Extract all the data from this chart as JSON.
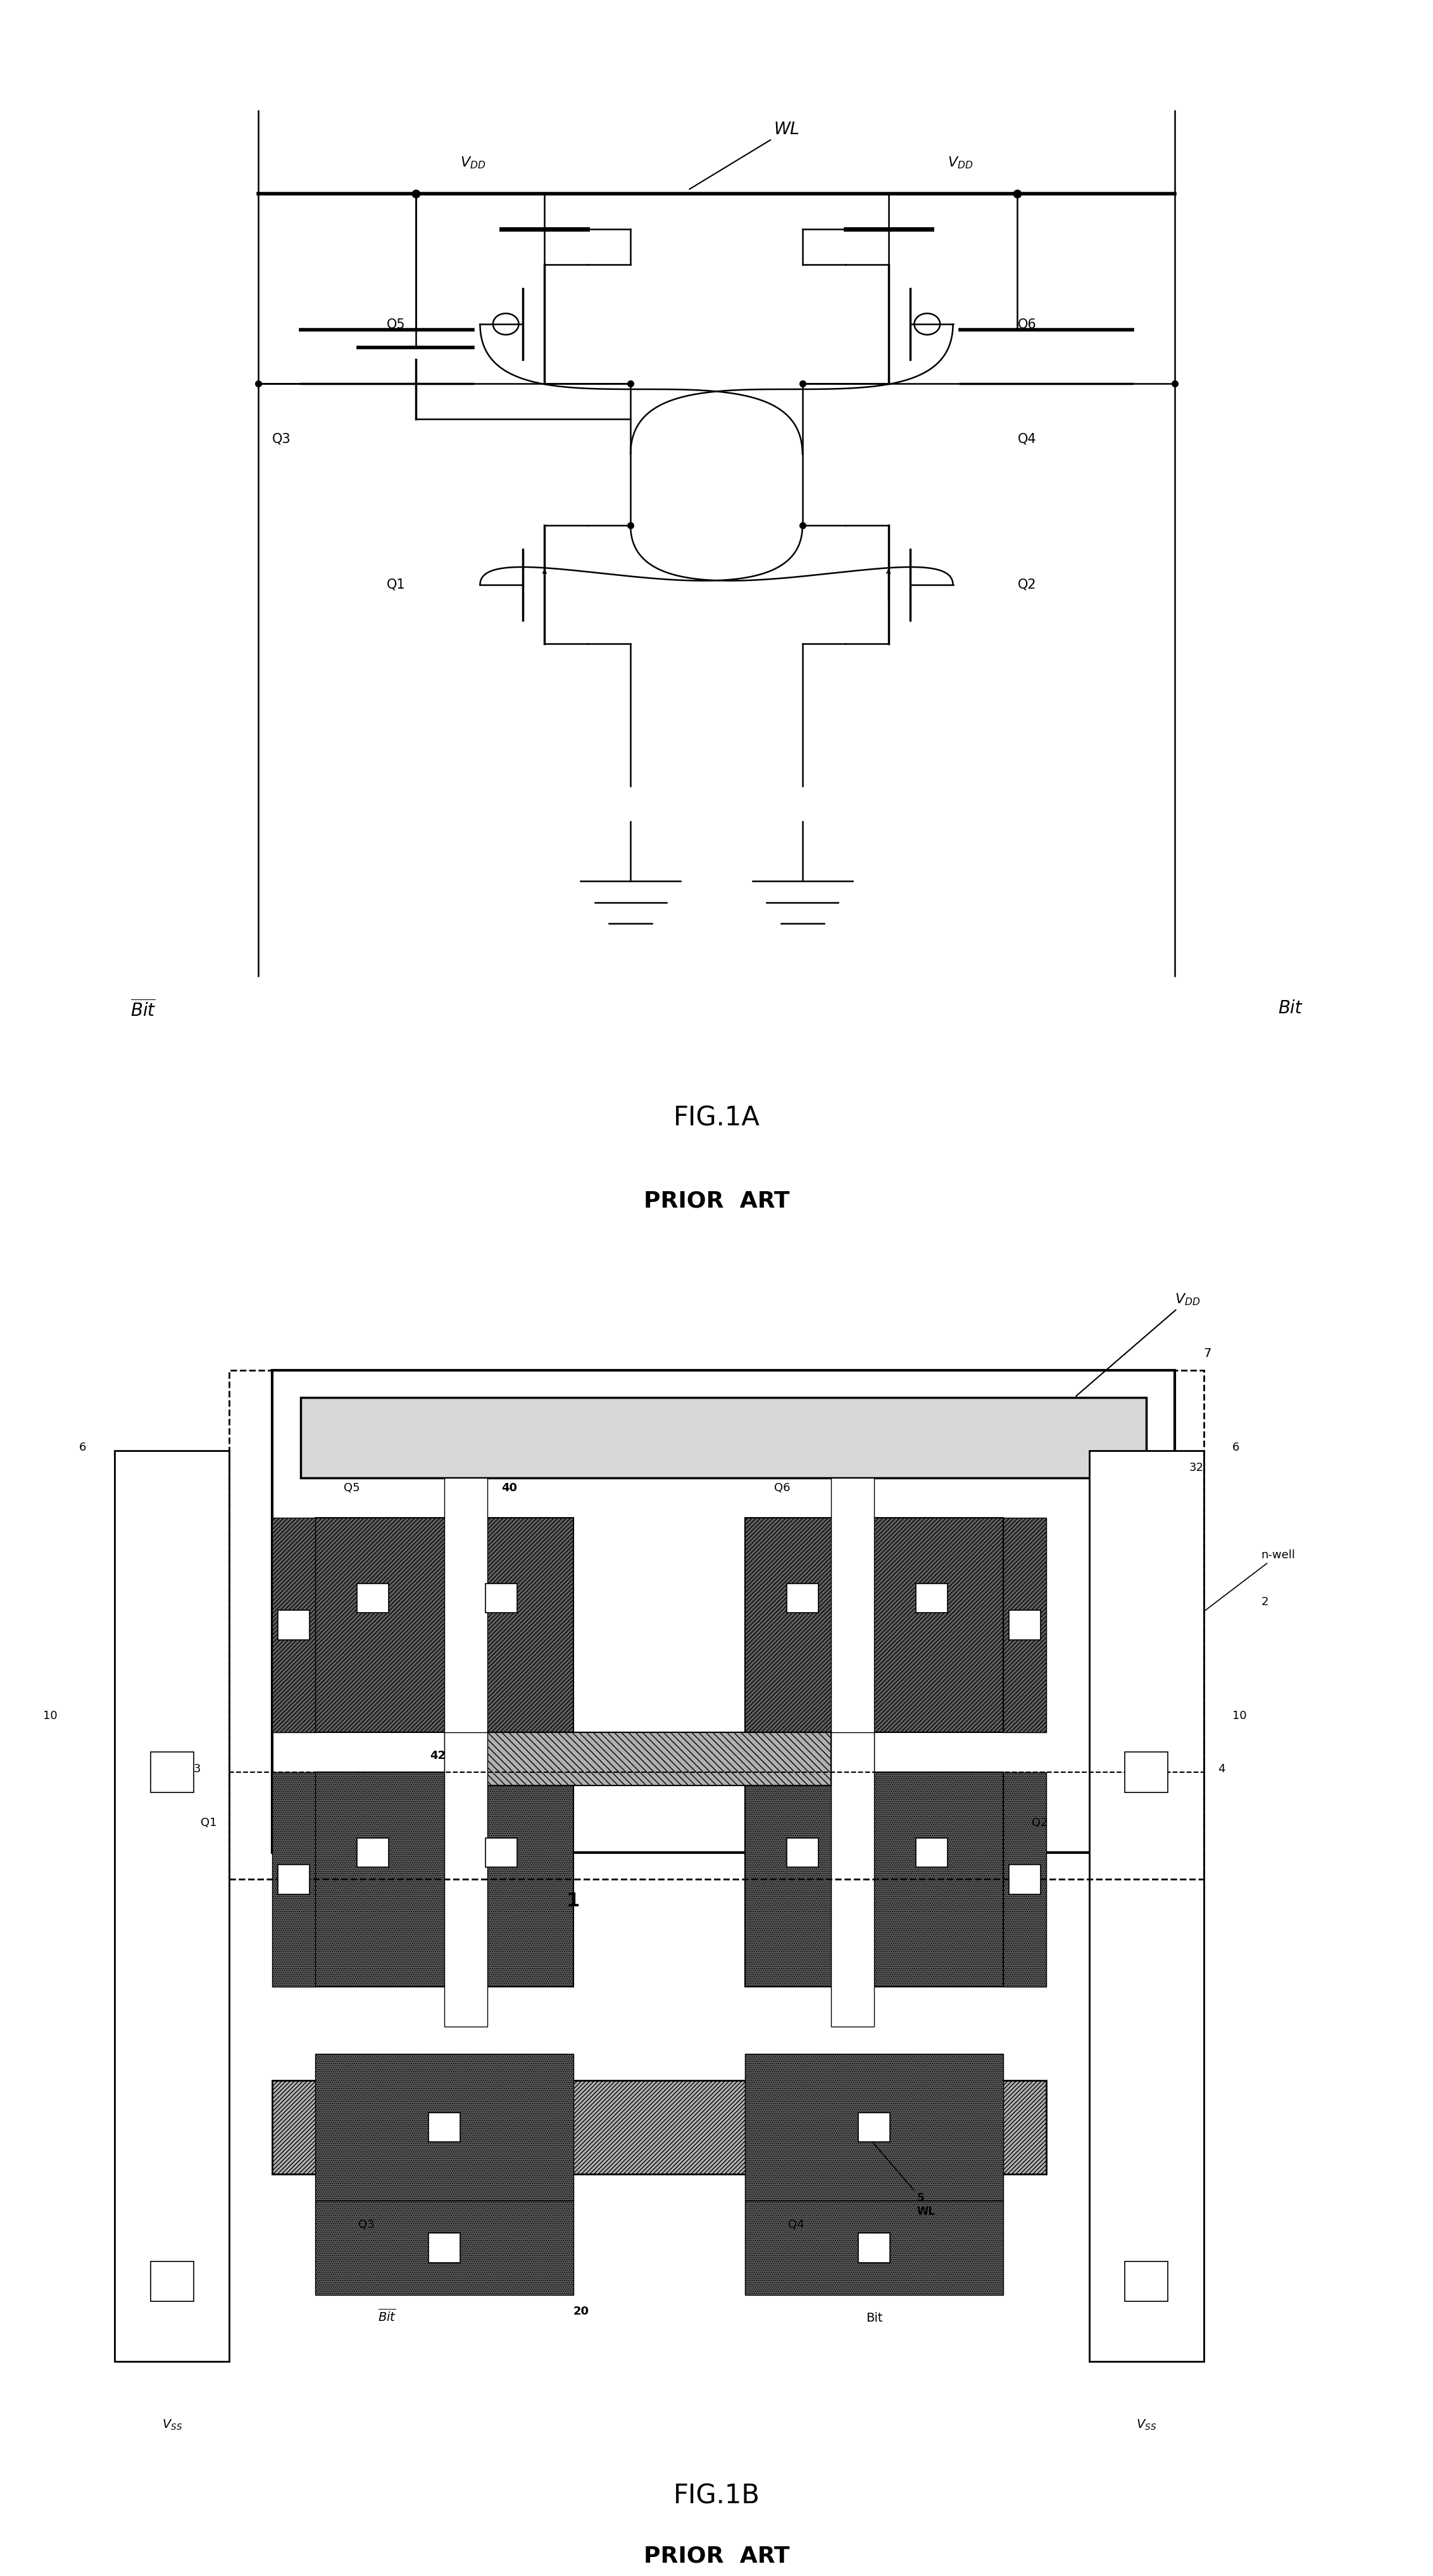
{
  "bg_color": "#ffffff",
  "fig_width": 22.64,
  "fig_height": 40.7,
  "title1": "FIG.1A",
  "subtitle1": "PRIOR  ART",
  "title2": "FIG.1B",
  "subtitle2": "PRIOR  ART",
  "gray_dark": "#606060",
  "gray_med": "#808080",
  "gray_light": "#b0b0b0",
  "gray_vdd": "#d8d8d8",
  "white": "#ffffff",
  "black": "#000000"
}
